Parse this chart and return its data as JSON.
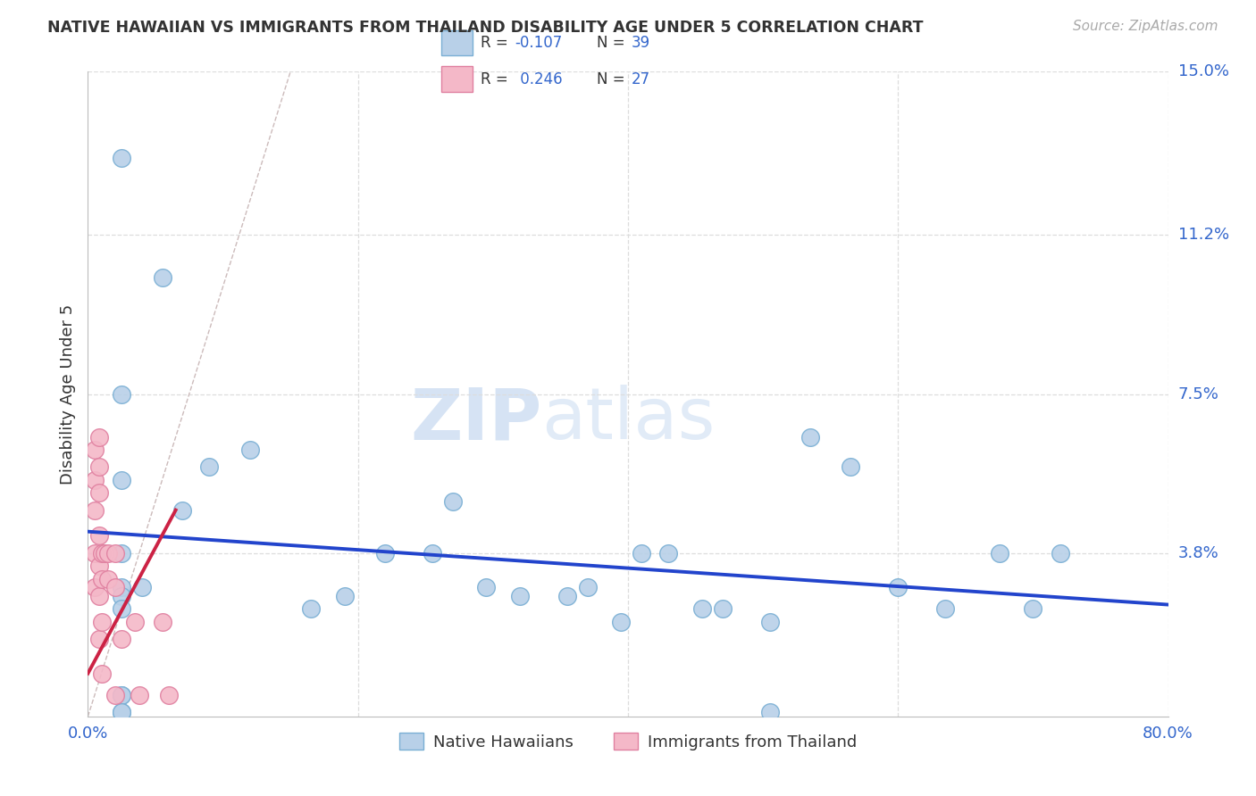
{
  "title": "NATIVE HAWAIIAN VS IMMIGRANTS FROM THAILAND DISABILITY AGE UNDER 5 CORRELATION CHART",
  "source": "Source: ZipAtlas.com",
  "ylabel": "Disability Age Under 5",
  "watermark": "ZIPatlas",
  "xlim": [
    0.0,
    0.8
  ],
  "ylim": [
    0.0,
    0.15
  ],
  "blue_color": "#b8d0e8",
  "blue_edge": "#7aafd4",
  "pink_color": "#f4b8c8",
  "pink_edge": "#e080a0",
  "blue_line_color": "#2244cc",
  "pink_line_color": "#cc2244",
  "diag_color": "#ccbbbb",
  "native_hawaiian_x": [
    0.025,
    0.055,
    0.025,
    0.025,
    0.025,
    0.025,
    0.04,
    0.07,
    0.09,
    0.12,
    0.165,
    0.19,
    0.22,
    0.255,
    0.27,
    0.295,
    0.32,
    0.355,
    0.37,
    0.395,
    0.41,
    0.43,
    0.455,
    0.47,
    0.505,
    0.505,
    0.535,
    0.565,
    0.6,
    0.635,
    0.675,
    0.7,
    0.72,
    0.025,
    0.025,
    0.025,
    0.025,
    0.025,
    0.025
  ],
  "native_hawaiian_y": [
    0.13,
    0.102,
    0.075,
    0.055,
    0.038,
    0.03,
    0.03,
    0.048,
    0.058,
    0.062,
    0.025,
    0.028,
    0.038,
    0.038,
    0.05,
    0.03,
    0.028,
    0.028,
    0.03,
    0.022,
    0.038,
    0.038,
    0.025,
    0.025,
    0.022,
    0.001,
    0.065,
    0.058,
    0.03,
    0.025,
    0.038,
    0.025,
    0.038,
    0.028,
    0.025,
    0.005,
    0.005,
    0.001,
    0.001
  ],
  "thailand_x": [
    0.005,
    0.005,
    0.005,
    0.005,
    0.005,
    0.008,
    0.008,
    0.008,
    0.008,
    0.008,
    0.008,
    0.008,
    0.01,
    0.01,
    0.01,
    0.01,
    0.012,
    0.015,
    0.015,
    0.02,
    0.02,
    0.02,
    0.025,
    0.035,
    0.038,
    0.055,
    0.06
  ],
  "thailand_y": [
    0.062,
    0.055,
    0.048,
    0.038,
    0.03,
    0.065,
    0.058,
    0.052,
    0.042,
    0.035,
    0.028,
    0.018,
    0.038,
    0.032,
    0.022,
    0.01,
    0.038,
    0.038,
    0.032,
    0.038,
    0.03,
    0.005,
    0.018,
    0.022,
    0.005,
    0.022,
    0.005
  ],
  "blue_trend_x": [
    0.0,
    0.8
  ],
  "blue_trend_y": [
    0.043,
    0.026
  ],
  "pink_trend_x": [
    0.0,
    0.065
  ],
  "pink_trend_y": [
    0.01,
    0.048
  ],
  "legend1_r": "-0.107",
  "legend1_n": "39",
  "legend2_r": "0.246",
  "legend2_n": "27"
}
